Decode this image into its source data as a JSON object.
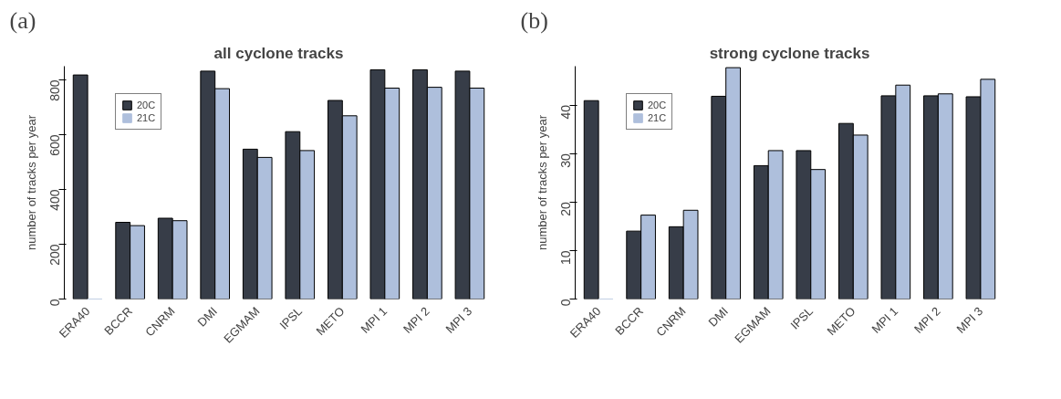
{
  "chart_data": [
    {
      "type": "bar",
      "title": "all cyclone tracks",
      "ylabel": "number of tracks per year",
      "annotations": [
        "(a)"
      ],
      "categories": [
        "ERA40",
        "BCCR",
        "CNRM",
        "DMI",
        "EGMAM",
        "IPSL",
        "METO",
        "MPI 1",
        "MPI 2",
        "MPI 3"
      ],
      "series": [
        {
          "name": "20C",
          "color": "#373d48",
          "values": [
            818,
            280,
            295,
            832,
            547,
            611,
            725,
            837,
            837,
            832
          ]
        },
        {
          "name": "21C",
          "color": "#aebfdc",
          "values": [
            0,
            268,
            286,
            768,
            517,
            542,
            669,
            770,
            773,
            770
          ]
        }
      ],
      "ylim": [
        0,
        850
      ],
      "yticks": [
        0,
        200,
        400,
        600,
        800
      ],
      "grid": false,
      "legend": "top left"
    },
    {
      "type": "bar",
      "title": "strong cyclone tracks",
      "ylabel": "number of tracks per year",
      "annotations": [
        "(b)"
      ],
      "categories": [
        "ERA40",
        "BCCR",
        "CNRM",
        "DMI",
        "EGMAM",
        "IPSL",
        "METO",
        "MPI 1",
        "MPI 2",
        "MPI 3"
      ],
      "series": [
        {
          "name": "20C",
          "color": "#373d48",
          "values": [
            40.9,
            14.0,
            14.9,
            41.8,
            27.5,
            30.6,
            36.2,
            41.9,
            41.9,
            41.7
          ]
        },
        {
          "name": "21C",
          "color": "#aebfdc",
          "values": [
            0,
            17.3,
            18.3,
            47.7,
            30.6,
            26.7,
            33.8,
            44.1,
            42.3,
            45.3
          ]
        }
      ],
      "ylim": [
        0,
        48
      ],
      "yticks": [
        0,
        10,
        20,
        30,
        40
      ],
      "grid": false,
      "legend": "top left"
    }
  ]
}
